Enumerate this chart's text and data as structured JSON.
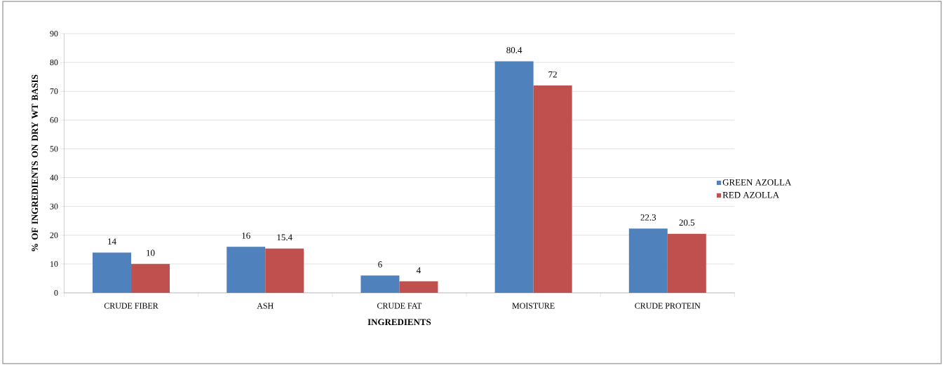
{
  "chart_data": {
    "type": "bar",
    "xlabel": "INGREDIENTS",
    "ylabel": "% OF INGREDIENTS ON DRY WT BASIS",
    "categories": [
      "CRUDE FIBER",
      "ASH",
      "CRUDE FAT",
      "MOISTURE",
      "CRUDE PROTEIN"
    ],
    "series": [
      {
        "name": "GREEN AZOLLA",
        "color": "#4f81bd",
        "values": [
          14,
          16,
          6,
          80.4,
          22.3
        ]
      },
      {
        "name": "RED AZOLLA",
        "color": "#c0504d",
        "values": [
          10,
          15.4,
          4,
          72,
          20.5
        ]
      }
    ],
    "ylim": [
      0,
      90
    ],
    "yticks": [
      0,
      10,
      20,
      30,
      40,
      50,
      60,
      70,
      80,
      90
    ],
    "grid": "y",
    "legend": "right",
    "data_labels": true
  }
}
